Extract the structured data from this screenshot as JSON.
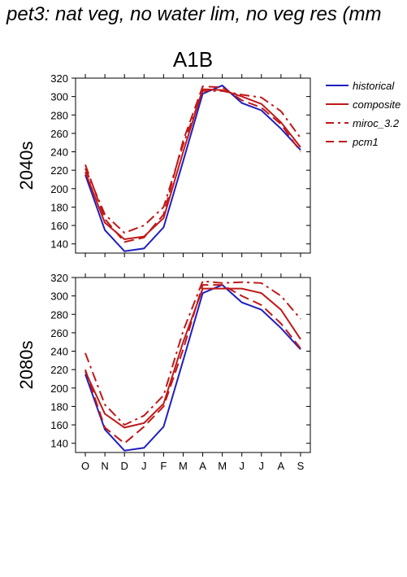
{
  "title": "pet3: nat veg, no water lim, no veg res (mm",
  "chart_data": [
    {
      "type": "line",
      "panel_title": "A1B",
      "row_label": "2040s",
      "categories": [
        "O",
        "N",
        "D",
        "J",
        "F",
        "M",
        "A",
        "M",
        "J",
        "J",
        "A",
        "S"
      ],
      "ylim": [
        130,
        320
      ],
      "yticks": [
        140,
        160,
        180,
        200,
        220,
        240,
        260,
        280,
        300,
        320
      ],
      "series": [
        {
          "name": "historical",
          "color": "#1f1fbf",
          "dash": "solid",
          "values": [
            215,
            155,
            132,
            135,
            158,
            230,
            303,
            312,
            293,
            285,
            265,
            242
          ]
        },
        {
          "name": "composite",
          "color": "#c01818",
          "dash": "solid",
          "values": [
            218,
            163,
            145,
            148,
            168,
            240,
            308,
            307,
            300,
            292,
            272,
            245
          ]
        },
        {
          "name": "miroc_3.2",
          "color": "#c01818",
          "dash": "dashdot",
          "values": [
            222,
            172,
            152,
            160,
            180,
            248,
            306,
            306,
            302,
            299,
            284,
            255
          ]
        },
        {
          "name": "pcm1",
          "color": "#c01818",
          "dash": "dash",
          "values": [
            226,
            167,
            142,
            147,
            172,
            252,
            311,
            310,
            296,
            288,
            270,
            240
          ]
        }
      ]
    },
    {
      "type": "line",
      "panel_title": "",
      "row_label": "2080s",
      "categories": [
        "O",
        "N",
        "D",
        "J",
        "F",
        "M",
        "A",
        "M",
        "J",
        "J",
        "A",
        "S"
      ],
      "ylim": [
        130,
        320
      ],
      "yticks": [
        140,
        160,
        180,
        200,
        220,
        240,
        260,
        280,
        300,
        320
      ],
      "series": [
        {
          "name": "historical",
          "color": "#1f1fbf",
          "dash": "solid",
          "values": [
            215,
            155,
            132,
            135,
            158,
            230,
            303,
            312,
            293,
            285,
            265,
            242
          ]
        },
        {
          "name": "composite",
          "color": "#c01818",
          "dash": "solid",
          "values": [
            218,
            172,
            157,
            162,
            183,
            250,
            308,
            308,
            308,
            303,
            285,
            253
          ]
        },
        {
          "name": "miroc_3.2",
          "color": "#c01818",
          "dash": "dashdot",
          "values": [
            238,
            182,
            160,
            170,
            192,
            262,
            316,
            314,
            315,
            314,
            300,
            275
          ]
        },
        {
          "name": "pcm1",
          "color": "#c01818",
          "dash": "dash",
          "values": [
            220,
            157,
            140,
            158,
            180,
            242,
            312,
            312,
            300,
            290,
            270,
            243
          ]
        }
      ]
    }
  ],
  "legend": [
    {
      "name": "historical",
      "color": "#1f1fbf",
      "dash": "solid"
    },
    {
      "name": "composite",
      "color": "#c01818",
      "dash": "solid"
    },
    {
      "name": "miroc_3.2",
      "color": "#c01818",
      "dash": "dashdot"
    },
    {
      "name": "pcm1",
      "color": "#c01818",
      "dash": "dash"
    }
  ]
}
